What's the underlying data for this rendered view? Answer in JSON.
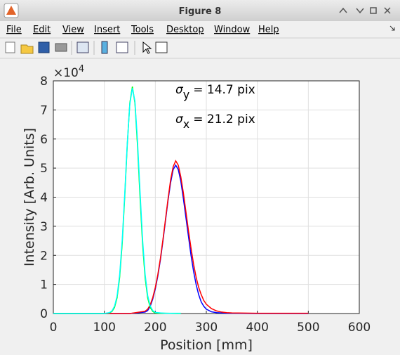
{
  "window": {
    "title": "Figure 8",
    "menu": [
      "File",
      "Edit",
      "View",
      "Insert",
      "Tools",
      "Desktop",
      "Window",
      "Help"
    ]
  },
  "chart_data": {
    "type": "line",
    "xlabel": "Position [mm]",
    "ylabel": "Intensity [Arb. Units]",
    "y_exponent": {
      "base": "×10",
      "power": "4"
    },
    "annotations": [
      {
        "symbol": "σ",
        "subscript": "y",
        "text": "= 14.7 pix"
      },
      {
        "symbol": "σ",
        "subscript": "x",
        "text": "= 21.2 pix"
      }
    ],
    "xlim": [
      0,
      600
    ],
    "xticks": [
      0,
      100,
      200,
      300,
      400,
      500,
      600
    ],
    "ylim": [
      0,
      8
    ],
    "yticks": [
      0,
      1,
      2,
      3,
      4,
      5,
      6,
      7,
      8
    ],
    "grid": true,
    "series": [
      {
        "color": "#0000ff",
        "x": [
          0,
          50,
          100,
          150,
          180,
          185,
          190,
          195,
          200,
          205,
          210,
          215,
          220,
          225,
          230,
          235,
          240,
          245,
          250,
          255,
          260,
          265,
          270,
          275,
          280,
          285,
          290,
          295,
          300,
          310,
          320,
          330,
          340,
          350,
          400,
          450,
          500
        ],
        "values": [
          0,
          0,
          0,
          0,
          0.05,
          0.1,
          0.25,
          0.5,
          0.85,
          1.3,
          1.85,
          2.5,
          3.2,
          3.9,
          4.5,
          4.95,
          5.1,
          4.95,
          4.55,
          3.95,
          3.3,
          2.65,
          2.0,
          1.45,
          1.0,
          0.65,
          0.4,
          0.25,
          0.15,
          0.06,
          0.03,
          0.02,
          0.01,
          0.01,
          0,
          0,
          0
        ]
      },
      {
        "color": "#ff0000",
        "x": [
          0,
          50,
          100,
          150,
          180,
          185,
          190,
          195,
          200,
          205,
          210,
          215,
          220,
          225,
          230,
          235,
          240,
          245,
          250,
          255,
          260,
          265,
          270,
          275,
          280,
          285,
          290,
          295,
          300,
          310,
          320,
          330,
          340,
          350,
          400,
          450,
          500
        ],
        "values": [
          0,
          0,
          0,
          0,
          0.08,
          0.15,
          0.3,
          0.55,
          0.9,
          1.35,
          1.9,
          2.55,
          3.25,
          3.95,
          4.6,
          5.05,
          5.25,
          5.1,
          4.7,
          4.15,
          3.5,
          2.85,
          2.25,
          1.7,
          1.25,
          0.9,
          0.65,
          0.45,
          0.32,
          0.17,
          0.09,
          0.05,
          0.03,
          0.02,
          0.01,
          0.01,
          0.01
        ]
      },
      {
        "color": "#00ff00",
        "x": [
          0,
          50,
          100,
          110,
          115,
          120,
          125,
          130,
          135,
          140,
          145,
          150,
          155,
          160,
          165,
          170,
          175,
          180,
          185,
          190,
          195,
          200,
          210,
          220,
          250
        ],
        "values": [
          0,
          0,
          0,
          0.02,
          0.07,
          0.21,
          0.54,
          1.23,
          2.39,
          4.01,
          5.8,
          7.24,
          7.8,
          7.24,
          5.8,
          4.01,
          2.39,
          1.23,
          0.54,
          0.21,
          0.07,
          0.02,
          0.01,
          0.01,
          0
        ]
      },
      {
        "color": "#00ffff",
        "x": [
          0,
          50,
          100,
          110,
          115,
          120,
          125,
          130,
          135,
          140,
          145,
          150,
          155,
          160,
          165,
          170,
          175,
          180,
          185,
          190,
          195,
          200,
          210,
          220,
          250
        ],
        "values": [
          0,
          0,
          0,
          0.03,
          0.09,
          0.25,
          0.6,
          1.32,
          2.5,
          4.1,
          5.85,
          7.2,
          7.75,
          7.3,
          5.95,
          4.2,
          2.55,
          1.35,
          0.62,
          0.26,
          0.1,
          0.04,
          0.02,
          0.01,
          0.01
        ]
      }
    ]
  }
}
